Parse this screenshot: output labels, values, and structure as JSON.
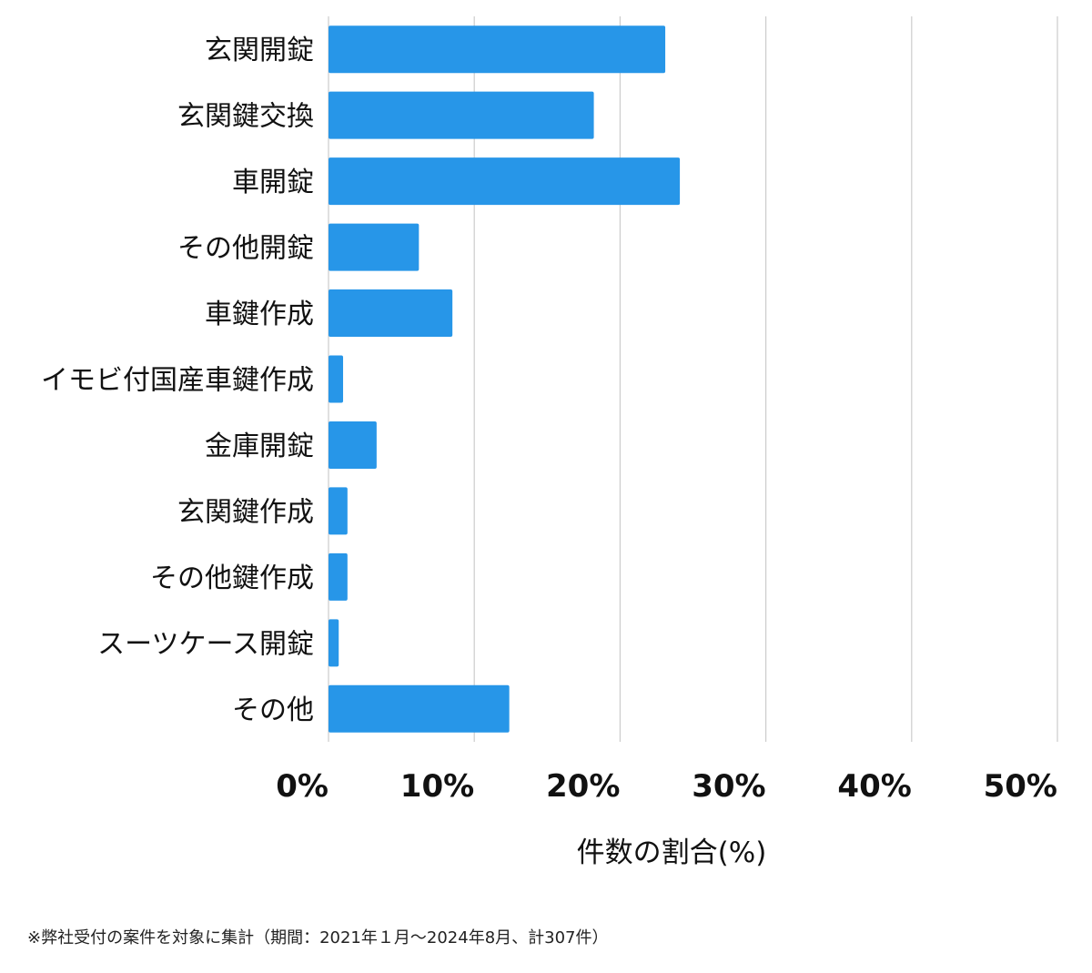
{
  "chart_data": {
    "type": "bar",
    "orientation": "horizontal",
    "categories": [
      "玄関開錠",
      "玄関鍵交換",
      "車開錠",
      "その他開錠",
      "車鍵作成",
      "イモビ付国産車鍵作成",
      "金庫開錠",
      "玄関鍵作成",
      "その他鍵作成",
      "スーツケース開錠",
      "その他"
    ],
    "values": [
      23.1,
      18.2,
      24.1,
      6.2,
      8.5,
      1.0,
      3.3,
      1.3,
      1.3,
      0.7,
      12.4
    ],
    "xlabel": "件数の割合(%)",
    "ylabel": "",
    "xlim": [
      0,
      50
    ],
    "x_ticks": [
      "0%",
      "10%",
      "20%",
      "30%",
      "40%",
      "50%"
    ],
    "grid": true,
    "bar_color": "#2796e8",
    "grid_color": "#cccccc"
  },
  "footnote": "※弊社受付の案件を対象に集計（期間：2021年１月〜2024年8月、計307件）"
}
